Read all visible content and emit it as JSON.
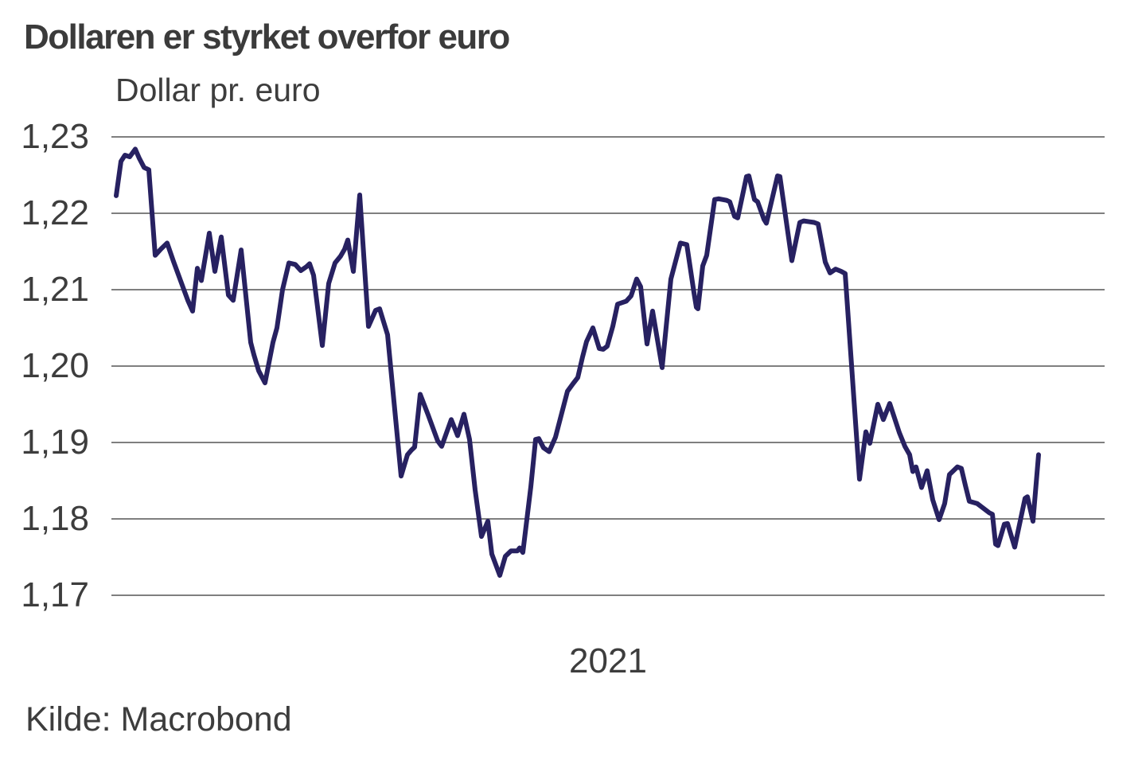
{
  "chart_data": {
    "type": "line",
    "title": "Dollaren er styrket overfor euro",
    "subtitle": "Dollar pr. euro",
    "xlabel": "2021",
    "source": "Kilde: Macrobond",
    "ylim": [
      1.17,
      1.23
    ],
    "grid": "horizontal-only",
    "legend": "none",
    "decimal_separator": ",",
    "colors": {
      "grid": "#7f7f7f",
      "text": "#3d3d3d",
      "line": "#272161"
    },
    "y_ticks": [
      {
        "value": 1.23,
        "label": "1,23"
      },
      {
        "value": 1.22,
        "label": "1,22"
      },
      {
        "value": 1.21,
        "label": "1,21"
      },
      {
        "value": 1.2,
        "label": "1,20"
      },
      {
        "value": 1.19,
        "label": "1,19"
      },
      {
        "value": 1.18,
        "label": "1,18"
      },
      {
        "value": 1.17,
        "label": "1,17"
      }
    ],
    "series": [
      {
        "name": "Dollar pr. euro",
        "color": "#272161",
        "points": [
          [
            146,
            1.2223
          ],
          [
            152,
            1.2268
          ],
          [
            157,
            1.2276
          ],
          [
            163,
            1.2274
          ],
          [
            170,
            1.2284
          ],
          [
            175,
            1.2272
          ],
          [
            181,
            1.226
          ],
          [
            187,
            1.2257
          ],
          [
            195,
            1.2145
          ],
          [
            202,
            1.2153
          ],
          [
            210,
            1.2161
          ],
          [
            218,
            1.2137
          ],
          [
            224,
            1.212
          ],
          [
            230,
            1.2103
          ],
          [
            236,
            1.2086
          ],
          [
            242,
            1.2072
          ],
          [
            248,
            1.2128
          ],
          [
            253,
            1.2112
          ],
          [
            263,
            1.2174
          ],
          [
            270,
            1.2124
          ],
          [
            278,
            1.2169
          ],
          [
            287,
            1.2093
          ],
          [
            293,
            1.2086
          ],
          [
            303,
            1.2152
          ],
          [
            315,
            1.2031
          ],
          [
            319,
            1.2015
          ],
          [
            325,
            1.1994
          ],
          [
            333,
            1.1978
          ],
          [
            343,
            1.2031
          ],
          [
            348,
            1.205
          ],
          [
            355,
            1.21
          ],
          [
            363,
            1.2135
          ],
          [
            371,
            1.2133
          ],
          [
            378,
            1.2125
          ],
          [
            385,
            1.213
          ],
          [
            389,
            1.2134
          ],
          [
            394,
            1.2119
          ],
          [
            405,
            1.2027
          ],
          [
            413,
            1.2108
          ],
          [
            421,
            1.2135
          ],
          [
            428,
            1.2144
          ],
          [
            433,
            1.2153
          ],
          [
            437,
            1.2165
          ],
          [
            444,
            1.2124
          ],
          [
            452,
            1.2224
          ],
          [
            463,
            1.2052
          ],
          [
            472,
            1.2073
          ],
          [
            477,
            1.2075
          ],
          [
            487,
            1.2041
          ],
          [
            504,
            1.1856
          ],
          [
            512,
            1.1884
          ],
          [
            517,
            1.189
          ],
          [
            521,
            1.1894
          ],
          [
            528,
            1.1963
          ],
          [
            538,
            1.1936
          ],
          [
            550,
            1.1902
          ],
          [
            555,
            1.1895
          ],
          [
            567,
            1.193
          ],
          [
            575,
            1.1909
          ],
          [
            583,
            1.1937
          ],
          [
            590,
            1.1904
          ],
          [
            597,
            1.1838
          ],
          [
            605,
            1.1777
          ],
          [
            613,
            1.1797
          ],
          [
            618,
            1.1754
          ],
          [
            628,
            1.1726
          ],
          [
            635,
            1.1751
          ],
          [
            642,
            1.1758
          ],
          [
            650,
            1.1758
          ],
          [
            653,
            1.1762
          ],
          [
            657,
            1.1756
          ],
          [
            667,
            1.1842
          ],
          [
            673,
            1.1904
          ],
          [
            677,
            1.1905
          ],
          [
            683,
            1.1893
          ],
          [
            690,
            1.1888
          ],
          [
            698,
            1.1907
          ],
          [
            713,
            1.1967
          ],
          [
            720,
            1.1977
          ],
          [
            726,
            1.1985
          ],
          [
            732,
            1.2012
          ],
          [
            737,
            1.2032
          ],
          [
            745,
            1.205
          ],
          [
            753,
            1.2023
          ],
          [
            758,
            1.2022
          ],
          [
            763,
            1.2026
          ],
          [
            770,
            1.2052
          ],
          [
            776,
            1.2081
          ],
          [
            787,
            1.2085
          ],
          [
            793,
            1.2092
          ],
          [
            800,
            1.2114
          ],
          [
            805,
            1.2104
          ],
          [
            813,
            1.2029
          ],
          [
            820,
            1.2072
          ],
          [
            832,
            1.1998
          ],
          [
            843,
            1.2114
          ],
          [
            855,
            1.2161
          ],
          [
            863,
            1.2159
          ],
          [
            872,
            1.2096
          ],
          [
            875,
            1.2077
          ],
          [
            877,
            1.2075
          ],
          [
            883,
            1.2131
          ],
          [
            888,
            1.2145
          ],
          [
            898,
            1.2218
          ],
          [
            903,
            1.2219
          ],
          [
            913,
            1.2217
          ],
          [
            917,
            1.2215
          ],
          [
            923,
            1.2196
          ],
          [
            927,
            1.2194
          ],
          [
            938,
            1.2248
          ],
          [
            941,
            1.2249
          ],
          [
            948,
            1.2218
          ],
          [
            952,
            1.2215
          ],
          [
            960,
            1.2192
          ],
          [
            963,
            1.2187
          ],
          [
            977,
            1.2249
          ],
          [
            980,
            1.2248
          ],
          [
            995,
            1.2138
          ],
          [
            1005,
            1.2188
          ],
          [
            1010,
            1.219
          ],
          [
            1023,
            1.2188
          ],
          [
            1028,
            1.2186
          ],
          [
            1037,
            1.2136
          ],
          [
            1043,
            1.2122
          ],
          [
            1050,
            1.2127
          ],
          [
            1057,
            1.2124
          ],
          [
            1062,
            1.2121
          ],
          [
            1080,
            1.1852
          ],
          [
            1088,
            1.1914
          ],
          [
            1093,
            1.1899
          ],
          [
            1103,
            1.195
          ],
          [
            1110,
            1.193
          ],
          [
            1118,
            1.1951
          ],
          [
            1130,
            1.1913
          ],
          [
            1137,
            1.1895
          ],
          [
            1143,
            1.1884
          ],
          [
            1147,
            1.1862
          ],
          [
            1151,
            1.1868
          ],
          [
            1158,
            1.1841
          ],
          [
            1165,
            1.1863
          ],
          [
            1172,
            1.1825
          ],
          [
            1180,
            1.1799
          ],
          [
            1187,
            1.182
          ],
          [
            1193,
            1.1858
          ],
          [
            1203,
            1.1868
          ],
          [
            1208,
            1.1866
          ],
          [
            1213,
            1.1844
          ],
          [
            1218,
            1.1823
          ],
          [
            1228,
            1.182
          ],
          [
            1233,
            1.1816
          ],
          [
            1243,
            1.1808
          ],
          [
            1247,
            1.1806
          ],
          [
            1251,
            1.1767
          ],
          [
            1254,
            1.1765
          ],
          [
            1262,
            1.1793
          ],
          [
            1266,
            1.1794
          ],
          [
            1275,
            1.1763
          ],
          [
            1288,
            1.1827
          ],
          [
            1291,
            1.1829
          ],
          [
            1298,
            1.1797
          ],
          [
            1305,
            1.1884
          ]
        ]
      }
    ]
  }
}
